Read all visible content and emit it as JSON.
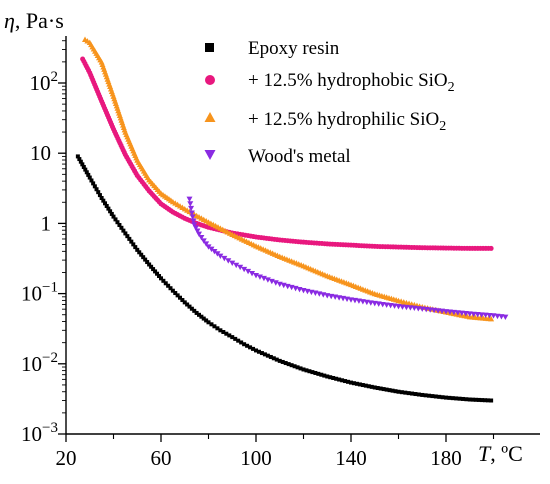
{
  "chart_data": {
    "type": "scatter",
    "ylabel_symbol": "η",
    "ylabel_unit": ", Pa·s",
    "xlabel_symbol": "T",
    "xlabel_unit": ", ºC",
    "x_scale": "linear",
    "y_scale": "log",
    "xlim": [
      20,
      210
    ],
    "ylim": [
      0.001,
      500
    ],
    "x_ticks": [
      20,
      60,
      100,
      140,
      180
    ],
    "x_tick_labels": [
      "20",
      "60",
      "100",
      "140",
      "180"
    ],
    "y_ticks": [
      0.001,
      0.01,
      0.1,
      1,
      10,
      100
    ],
    "y_tick_labels": [
      {
        "base": "10",
        "exp": "−3"
      },
      {
        "base": "10",
        "exp": "−2"
      },
      {
        "base": "10",
        "exp": "−1"
      },
      {
        "base": "1",
        "exp": ""
      },
      {
        "base": "10",
        "exp": ""
      },
      {
        "base": "10",
        "exp": "2"
      }
    ],
    "grid": false,
    "legend_position": "top-right",
    "series": [
      {
        "name": "Epoxy resin",
        "marker": "square",
        "color": "#000000",
        "x": [
          25,
          30,
          35,
          40,
          45,
          50,
          55,
          60,
          65,
          70,
          75,
          80,
          85,
          90,
          95,
          100,
          110,
          120,
          130,
          140,
          150,
          160,
          170,
          180,
          190,
          199
        ],
        "y": [
          9,
          4.5,
          2.3,
          1.25,
          0.72,
          0.42,
          0.26,
          0.165,
          0.11,
          0.075,
          0.053,
          0.039,
          0.03,
          0.024,
          0.019,
          0.0155,
          0.011,
          0.0083,
          0.0066,
          0.0054,
          0.0046,
          0.004,
          0.0036,
          0.0033,
          0.0031,
          0.003
        ]
      },
      {
        "name": "+ 12.5% hydrophobic SiO",
        "name_sub": "2",
        "marker": "circle",
        "color": "#e8187e",
        "x": [
          27,
          30,
          35,
          40,
          45,
          50,
          55,
          60,
          65,
          70,
          75,
          80,
          90,
          100,
          110,
          120,
          130,
          140,
          150,
          160,
          170,
          180,
          190,
          199
        ],
        "y": [
          220,
          140,
          55,
          22,
          9.5,
          4.8,
          2.9,
          1.9,
          1.45,
          1.18,
          1.0,
          0.88,
          0.73,
          0.64,
          0.58,
          0.54,
          0.51,
          0.49,
          0.47,
          0.46,
          0.45,
          0.445,
          0.44,
          0.44
        ]
      },
      {
        "name": "+ 12.5% hydrophilic SiO",
        "name_sub": "2",
        "marker": "triangle-up",
        "color": "#f7941d",
        "x": [
          28,
          30,
          35,
          40,
          45,
          50,
          55,
          60,
          65,
          70,
          75,
          80,
          90,
          100,
          110,
          120,
          130,
          140,
          150,
          160,
          170,
          180,
          190,
          199
        ],
        "y": [
          420,
          380,
          200,
          65,
          20,
          8,
          4.2,
          2.7,
          2.05,
          1.62,
          1.3,
          1.05,
          0.7,
          0.48,
          0.34,
          0.25,
          0.18,
          0.135,
          0.1,
          0.08,
          0.065,
          0.055,
          0.047,
          0.044
        ]
      },
      {
        "name": "Wood's metal",
        "marker": "triangle-down",
        "color": "#8a2be2",
        "x": [
          72,
          73,
          74,
          76,
          78,
          80,
          85,
          90,
          95,
          100,
          110,
          120,
          130,
          140,
          150,
          160,
          170,
          180,
          190,
          200,
          205
        ],
        "y": [
          2.2,
          1.4,
          0.95,
          0.7,
          0.56,
          0.46,
          0.34,
          0.27,
          0.22,
          0.18,
          0.135,
          0.11,
          0.093,
          0.081,
          0.072,
          0.065,
          0.06,
          0.055,
          0.051,
          0.048,
          0.046
        ]
      }
    ]
  }
}
